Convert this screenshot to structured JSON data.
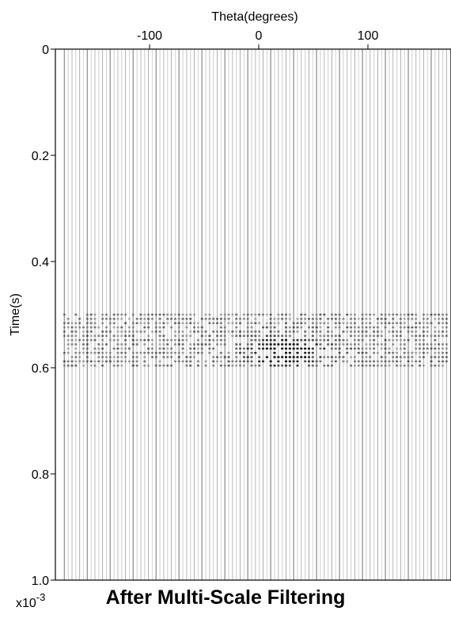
{
  "chart_data": {
    "type": "heatmap",
    "title": "After Multi-Scale Filtering",
    "xlabel": "Theta(degrees)",
    "ylabel": "Time(s)",
    "x_axis_position": "top",
    "xlim": [
      -180,
      180
    ],
    "ylim": [
      0,
      1.0
    ],
    "y_inverted": true,
    "x_ticks": [
      -100,
      0,
      100
    ],
    "x_tick_labels": [
      "-100",
      "0",
      "100"
    ],
    "y_ticks": [
      0,
      0.2,
      0.4,
      0.6,
      0.8,
      1.0
    ],
    "y_tick_labels": [
      "0",
      "0.2",
      "0.4",
      "0.6",
      "0.8",
      "1.0"
    ],
    "y_exponent_label": "x10",
    "y_exponent": "-3",
    "trace_spacing_deg": 3.5,
    "event_band": {
      "t_start": 0.5,
      "t_end": 0.6,
      "peak_theta": 25,
      "peak_time": 0.57
    },
    "grid": false,
    "colormap": "grayscale"
  }
}
